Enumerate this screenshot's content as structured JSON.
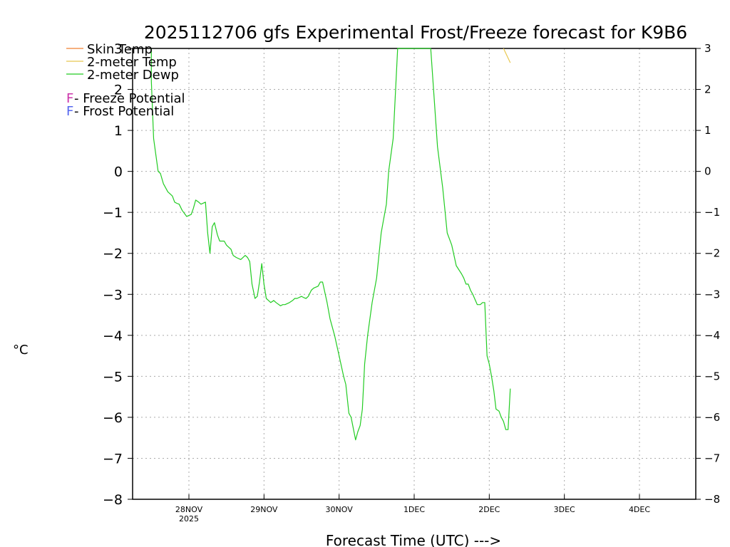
{
  "chart_data": {
    "type": "line",
    "title": "2025112706 gfs Experimental Frost/Freeze forecast for K9B6",
    "xlabel": "Forecast Time (UTC) --->",
    "ylabel": "°C",
    "ylim": [
      -8,
      3
    ],
    "xlim": [
      -0.75,
      6.75
    ],
    "yticks": [
      -8,
      -7,
      -6,
      -5,
      -4,
      -3,
      -2,
      -1,
      0,
      1,
      2,
      3
    ],
    "ytick_labels": [
      "−8",
      "−7",
      "−6",
      "−5",
      "−4",
      "−3",
      "−2",
      "−1",
      "0",
      "1",
      "2",
      "3"
    ],
    "xticks": [
      {
        "pos": 0,
        "label": "28NOV",
        "sub": "2025"
      },
      {
        "pos": 1,
        "label": "29NOV",
        "sub": ""
      },
      {
        "pos": 2,
        "label": "30NOV",
        "sub": ""
      },
      {
        "pos": 3,
        "label": "1DEC",
        "sub": ""
      },
      {
        "pos": 4,
        "label": "2DEC",
        "sub": ""
      },
      {
        "pos": 5,
        "label": "3DEC",
        "sub": ""
      },
      {
        "pos": 6,
        "label": "4DEC",
        "sub": ""
      }
    ],
    "grid": true,
    "colors": {
      "skin_temp": "#f08030",
      "temp_2m": "#e8c850",
      "dewp_2m": "#22cc22",
      "freeze": "#cc33aa",
      "frost": "#5566ee"
    },
    "series": [
      {
        "name": "2-meter Dewp",
        "color": "#22cc22",
        "x": [
          -0.5,
          -0.5,
          -0.47,
          -0.41,
          -0.38,
          -0.34,
          -0.28,
          -0.25,
          -0.22,
          -0.19,
          -0.16,
          -0.13,
          -0.09,
          -0.03,
          0.03,
          0.06,
          0.09,
          0.13,
          0.16,
          0.22,
          0.25,
          0.28,
          0.31,
          0.34,
          0.38,
          0.41,
          0.47,
          0.5,
          0.53,
          0.56,
          0.59,
          0.63,
          0.69,
          0.75,
          0.78,
          0.81,
          0.84,
          0.88,
          0.91,
          0.94,
          0.97,
          1.0,
          1.03,
          1.06,
          1.09,
          1.13,
          1.16,
          1.22,
          1.25,
          1.28,
          1.34,
          1.38,
          1.41,
          1.44,
          1.5,
          1.53,
          1.56,
          1.59,
          1.63,
          1.66,
          1.72,
          1.75,
          1.78,
          1.84,
          1.88,
          1.94,
          2.0,
          2.06,
          2.09,
          2.13,
          2.16,
          2.22,
          2.25,
          2.28,
          2.31,
          2.34,
          2.38,
          2.44,
          2.5,
          2.56,
          2.59,
          2.63,
          2.66,
          2.72,
          2.78,
          3.22,
          3.31,
          3.38,
          3.44,
          3.5,
          3.56,
          3.63,
          3.66,
          3.69,
          3.72,
          3.75,
          3.78,
          3.84,
          3.88,
          3.91,
          3.94,
          3.97,
          4.0,
          4.03,
          4.06,
          4.09,
          4.13,
          4.16,
          4.19,
          4.22,
          4.25,
          4.28
        ],
        "values": [
          3.0,
          2.2,
          0.8,
          0.0,
          -0.05,
          -0.3,
          -0.5,
          -0.55,
          -0.6,
          -0.75,
          -0.78,
          -0.8,
          -0.95,
          -1.1,
          -1.05,
          -0.9,
          -0.7,
          -0.75,
          -0.8,
          -0.75,
          -1.5,
          -2.0,
          -1.35,
          -1.25,
          -1.55,
          -1.7,
          -1.7,
          -1.8,
          -1.85,
          -1.9,
          -2.05,
          -2.1,
          -2.15,
          -2.05,
          -2.1,
          -2.2,
          -2.75,
          -3.1,
          -3.05,
          -2.7,
          -2.25,
          -2.75,
          -3.1,
          -3.15,
          -3.2,
          -3.15,
          -3.2,
          -3.28,
          -3.25,
          -3.25,
          -3.2,
          -3.15,
          -3.1,
          -3.1,
          -3.05,
          -3.08,
          -3.1,
          -3.05,
          -2.9,
          -2.85,
          -2.8,
          -2.7,
          -2.7,
          -3.2,
          -3.6,
          -4.0,
          -4.5,
          -5.0,
          -5.2,
          -5.9,
          -6.0,
          -6.55,
          -6.35,
          -6.2,
          -5.8,
          -4.7,
          -4.0,
          -3.2,
          -2.6,
          -1.5,
          -1.2,
          -0.8,
          0.0,
          0.8,
          3.0,
          3.0,
          0.6,
          -0.4,
          -1.5,
          -1.8,
          -2.3,
          -2.5,
          -2.6,
          -2.75,
          -2.75,
          -2.9,
          -3.0,
          -3.25,
          -3.25,
          -3.2,
          -3.2,
          -4.5,
          -4.7,
          -5.0,
          -5.35,
          -5.8,
          -5.85,
          -6.0,
          -6.1,
          -6.3,
          -6.3,
          -5.3
        ]
      },
      {
        "name": "2-meter Temp",
        "color": "#e8c850",
        "x": [
          4.19,
          4.28
        ],
        "values": [
          3.0,
          2.65
        ]
      },
      {
        "name": "Skin Temp",
        "color": "#f08030",
        "x": [],
        "values": []
      }
    ],
    "legend": [
      {
        "text": "Skin Temp",
        "color": "#f08030",
        "type": "line"
      },
      {
        "text": "2-meter Temp",
        "color": "#e8c850",
        "type": "line"
      },
      {
        "text": "2-meter Dewp",
        "color": "#22cc22",
        "type": "line"
      }
    ],
    "potential_legend": [
      {
        "letter": "F",
        "text": " - Freeze Potential",
        "color": "#cc33aa"
      },
      {
        "letter": "F",
        "text": " - Frost Potential",
        "color": "#5566ee"
      }
    ]
  }
}
